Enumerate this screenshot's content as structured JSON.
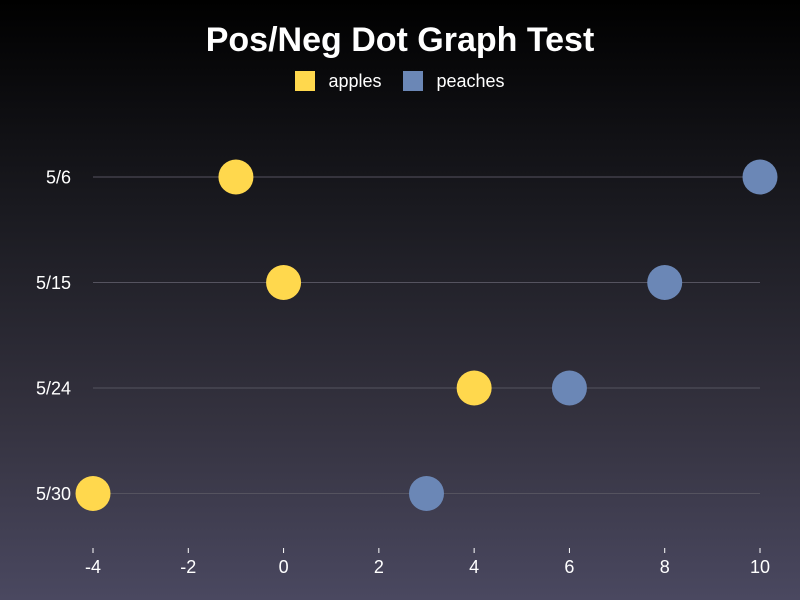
{
  "chart_data": {
    "type": "scatter",
    "title": "Pos/Neg Dot Graph Test",
    "categories": [
      "5/6",
      "5/15",
      "5/24",
      "5/30"
    ],
    "series": [
      {
        "name": "apples",
        "color": "#ffd84d",
        "values": [
          -1,
          0,
          4,
          -4
        ]
      },
      {
        "name": "peaches",
        "color": "#6b87b6",
        "values": [
          10,
          8,
          6,
          3
        ]
      }
    ],
    "xlim": [
      -4,
      10
    ],
    "xticks": [
      "-4",
      "-2",
      "0",
      "2",
      "4",
      "6",
      "8",
      "10"
    ],
    "xlabel": "",
    "ylabel": "",
    "grid": "horizontal",
    "legend_position": "top-center"
  }
}
